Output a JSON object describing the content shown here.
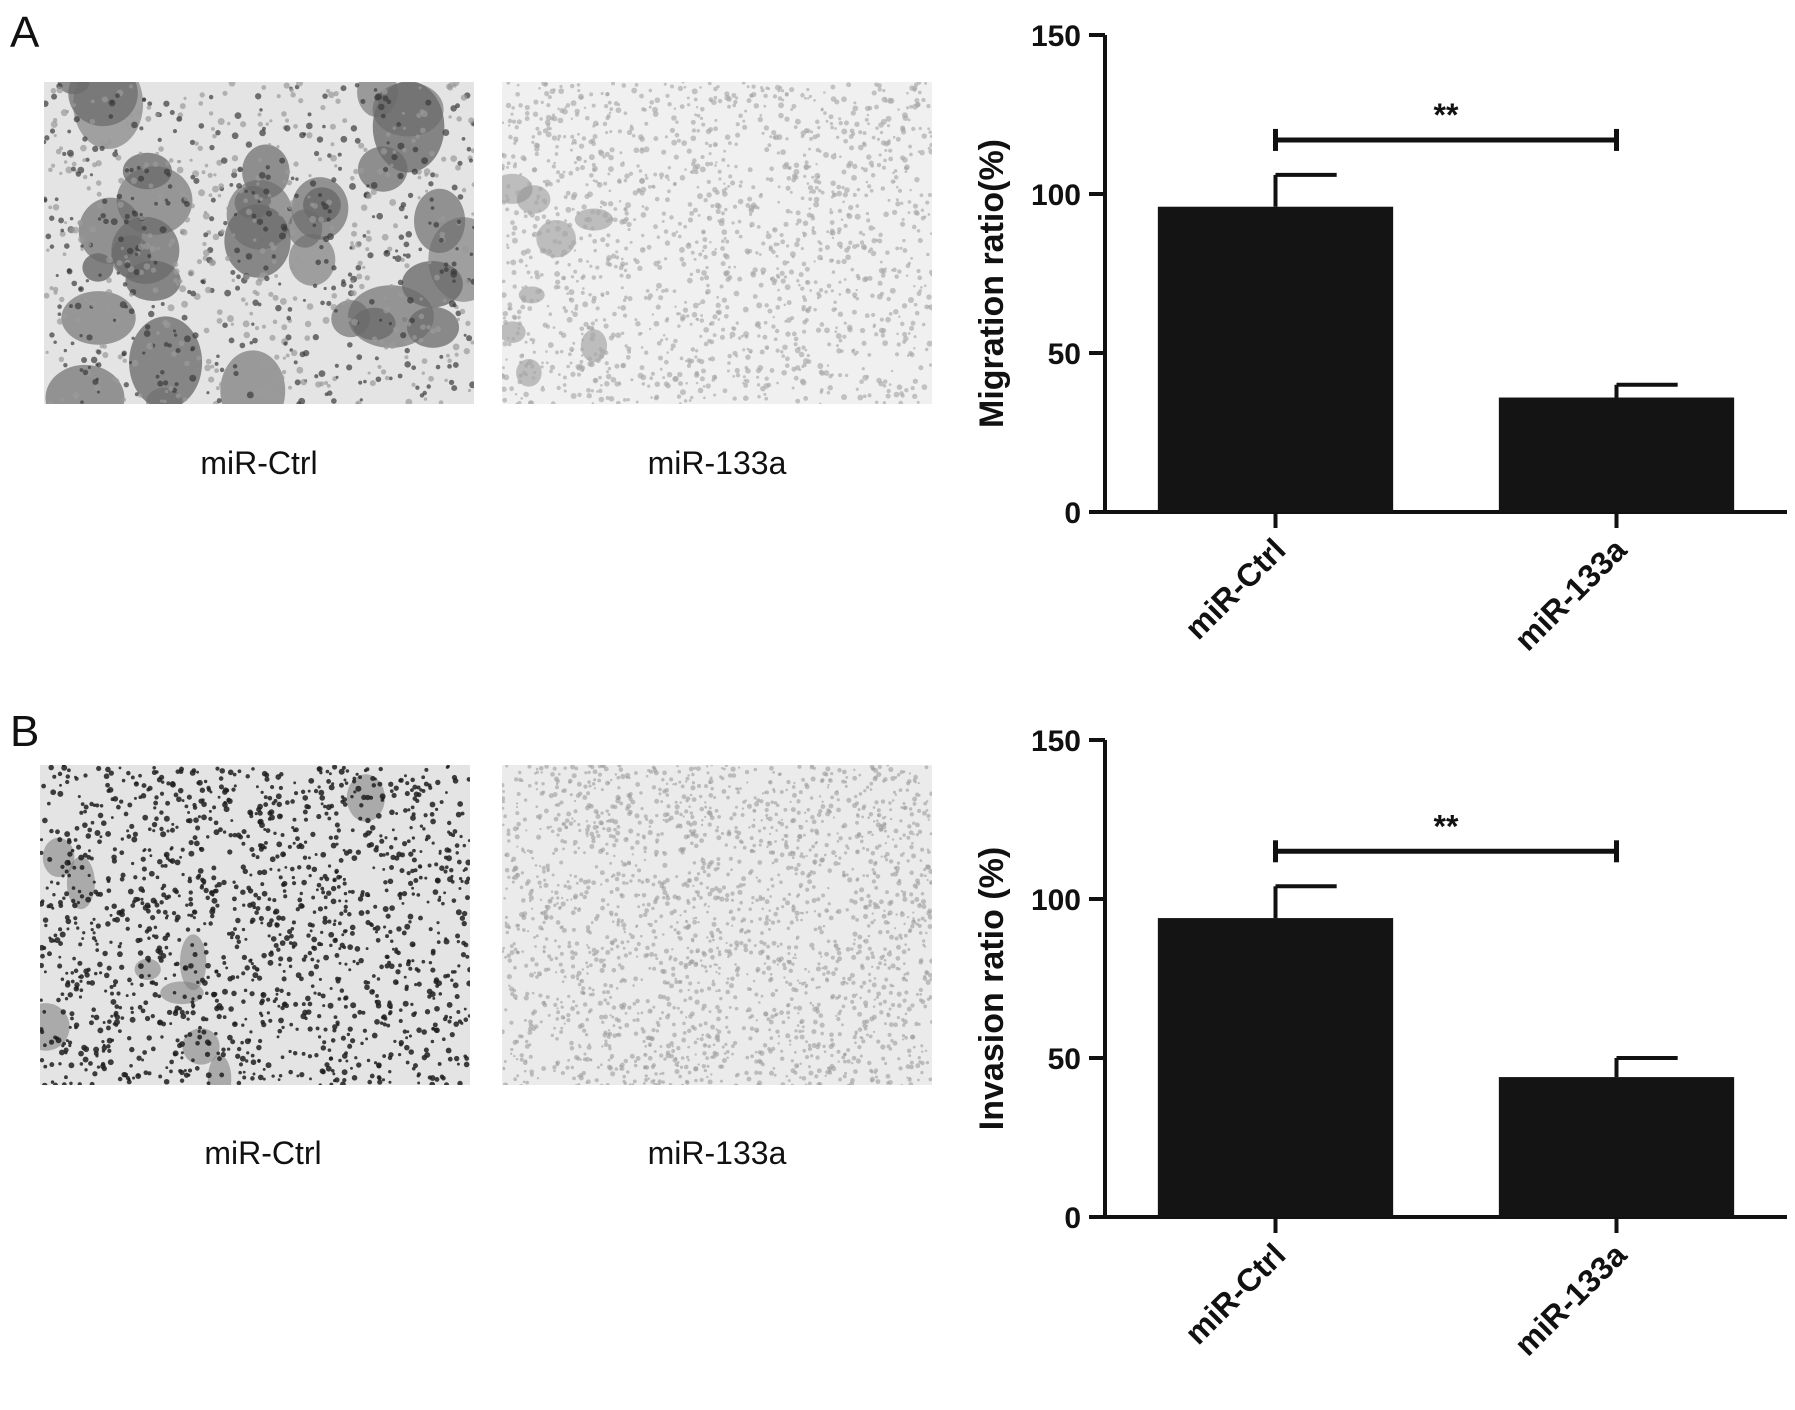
{
  "panels": [
    {
      "letter": "A",
      "images": [
        {
          "label": "miR-Ctrl",
          "style": "clustered"
        },
        {
          "label": "miR-133a",
          "style": "sparse"
        }
      ]
    },
    {
      "letter": "B",
      "images": [
        {
          "label": "miR-Ctrl",
          "style": "dense-dots"
        },
        {
          "label": "miR-133a",
          "style": "fine"
        }
      ]
    }
  ],
  "chart_data": [
    {
      "type": "bar",
      "categories": [
        "miR-Ctrl",
        "miR-133a"
      ],
      "values": [
        96,
        36
      ],
      "errors": [
        10,
        4
      ],
      "ylabel": "Migration ratio(%)",
      "xlabel": "",
      "ylim": [
        0,
        150
      ],
      "yticks": [
        0,
        50,
        100,
        150
      ],
      "significance": "**",
      "bar_color": "#141414"
    },
    {
      "type": "bar",
      "categories": [
        "miR-Ctrl",
        "miR-133a"
      ],
      "values": [
        94,
        44
      ],
      "errors": [
        10,
        6
      ],
      "ylabel": "Invasion ratio (%)",
      "xlabel": "",
      "ylim": [
        0,
        150
      ],
      "yticks": [
        0,
        50,
        100,
        150
      ],
      "significance": "**",
      "bar_color": "#141414"
    }
  ]
}
